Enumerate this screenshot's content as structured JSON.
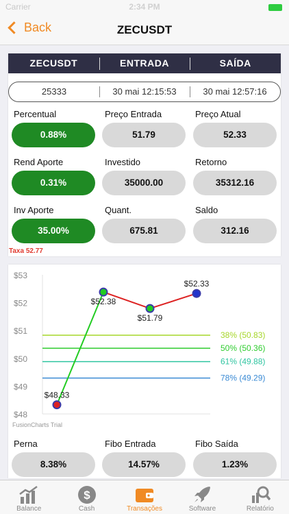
{
  "status_bar": {
    "carrier": "Carrier",
    "time": "2:34 PM"
  },
  "nav": {
    "back_label": "Back",
    "title": "ZECUSDT"
  },
  "header": {
    "col1": "ZECUSDT",
    "col2": "ENTRADA",
    "col3": "SAÍDA"
  },
  "info": {
    "id": "25333",
    "entrada": "30 mai 12:15:53",
    "saida": "30 mai 12:57:16"
  },
  "metrics": [
    {
      "label": "Percentual",
      "value": "0.88%",
      "highlight": true
    },
    {
      "label": "Preço Entrada",
      "value": "51.79",
      "highlight": false
    },
    {
      "label": "Preço Atual",
      "value": "52.33",
      "highlight": false
    },
    {
      "label": "Rend Aporte",
      "value": "0.31%",
      "highlight": true
    },
    {
      "label": "Investido",
      "value": "35000.00",
      "highlight": false
    },
    {
      "label": "Retorno",
      "value": "35312.16",
      "highlight": false
    },
    {
      "label": "Inv Aporte",
      "value": "35.00%",
      "highlight": true
    },
    {
      "label": "Quant.",
      "value": "675.81",
      "highlight": false
    },
    {
      "label": "Saldo",
      "value": "312.16",
      "highlight": false
    }
  ],
  "taxa": "Taxa 52.77",
  "chart_data": {
    "type": "line",
    "y_ticks": [
      "$53",
      "$52",
      "$51",
      "$50",
      "$49",
      "$48"
    ],
    "ylim": [
      48,
      53
    ],
    "credit": "FusionCharts Trial",
    "series": [
      {
        "color": "#22cc22",
        "points": [
          {
            "x": 0,
            "y": 48.33,
            "label": "$48.33"
          },
          {
            "x": 1,
            "y": 52.38,
            "label": "$52.38"
          }
        ]
      },
      {
        "color": "#dd2222",
        "points": [
          {
            "x": 1,
            "y": 52.38,
            "label": "$52.38"
          },
          {
            "x": 2,
            "y": 51.79,
            "label": "$51.79"
          },
          {
            "x": 3,
            "y": 52.33,
            "label": "$52.33"
          }
        ]
      }
    ],
    "fib_lines": [
      {
        "label": "38% (50.83)",
        "value": 50.83,
        "color": "#a6d62a"
      },
      {
        "label": "50% (50.36)",
        "value": 50.36,
        "color": "#2ecc2e"
      },
      {
        "label": "61% (49.88)",
        "value": 49.88,
        "color": "#2ec4a0"
      },
      {
        "label": "78% (49.29)",
        "value": 49.29,
        "color": "#3a8ad4"
      }
    ]
  },
  "bottom_metrics": [
    {
      "label": "Perna",
      "value": "8.38%"
    },
    {
      "label": "Fibo Entrada",
      "value": "14.57%"
    },
    {
      "label": "Fibo Saída",
      "value": "1.23%"
    }
  ],
  "tabs": [
    {
      "label": "Balance",
      "icon": "chart-growth-icon",
      "active": false
    },
    {
      "label": "Cash",
      "icon": "dollar-coin-icon",
      "active": false
    },
    {
      "label": "Transações",
      "icon": "wallet-icon",
      "active": true
    },
    {
      "label": "Software",
      "icon": "rocket-icon",
      "active": false
    },
    {
      "label": "Relatório",
      "icon": "report-search-icon",
      "active": false
    }
  ],
  "colors": {
    "accent": "#f08a24",
    "header_bg": "#2f2f45",
    "green": "#1f8a24",
    "pill_gray": "#d9d9d9",
    "taxa_red": "#e03a2f"
  }
}
